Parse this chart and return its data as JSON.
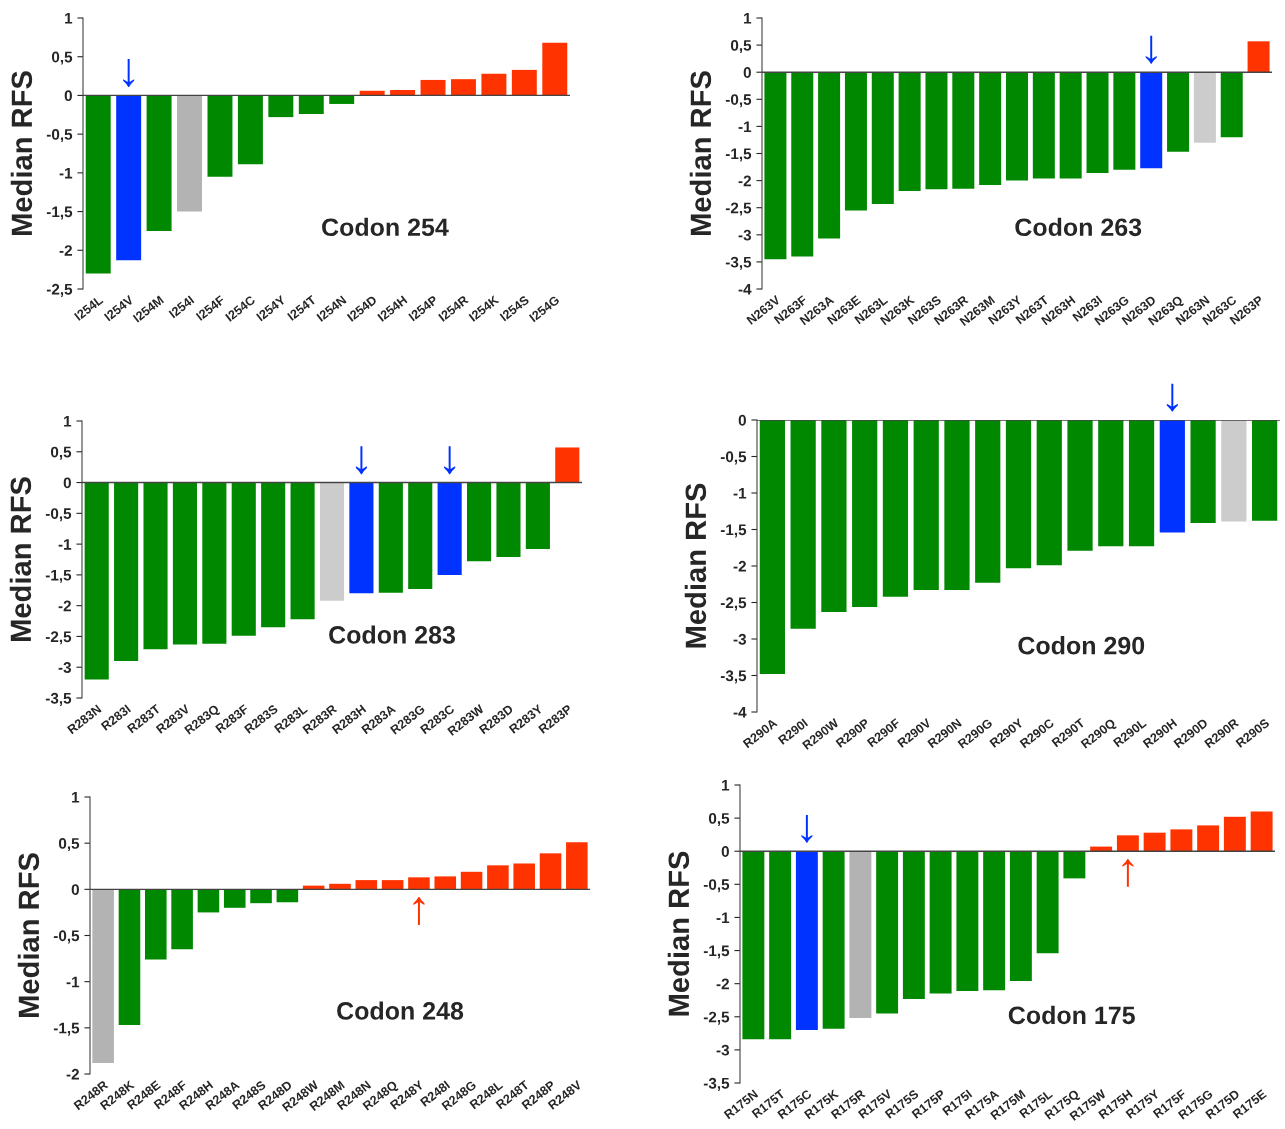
{
  "chart_data": [
    {
      "type": "bar",
      "title": "Codon 254",
      "ylabel": "Median RFS",
      "categories": [
        "I254L",
        "I254V",
        "I254M",
        "I254I",
        "I254F",
        "I254C",
        "I254Y",
        "I254T",
        "I254N",
        "I254D",
        "I254H",
        "I254P",
        "I254R",
        "I254K",
        "I254S",
        "I254G"
      ],
      "values": [
        -2.3,
        -2.13,
        -1.75,
        -1.5,
        -1.05,
        -0.89,
        -0.28,
        -0.24,
        -0.11,
        0.06,
        0.07,
        0.2,
        0.21,
        0.28,
        0.33,
        0.68
      ],
      "colors": [
        "#008800",
        "#0033ff",
        "#008800",
        "#b3b3b3",
        "#008800",
        "#008800",
        "#008800",
        "#008800",
        "#008800",
        "#ff3300",
        "#ff3300",
        "#ff3300",
        "#ff3300",
        "#ff3300",
        "#ff3300",
        "#ff3300"
      ],
      "ylim": [
        -2.5,
        1
      ],
      "yticks": [
        {
          "value": -2.5,
          "label": "-2,5"
        },
        -2,
        {
          "value": -1.5,
          "label": "-1,5"
        },
        -1,
        {
          "value": -0.5,
          "label": "-0,5"
        },
        0,
        {
          "value": 0.5,
          "label": "0,5"
        },
        1
      ],
      "annotations": [
        {
          "text": "↓",
          "x": "I254V",
          "y": 0
        }
      ]
    },
    {
      "type": "bar",
      "title": "Codon 263",
      "ylabel": "Median RFS",
      "categories": [
        "N263V",
        "N263F",
        "N263A",
        "N263E",
        "N263L",
        "N263K",
        "N263S",
        "N263R",
        "N263M",
        "N263Y",
        "N263T",
        "N263H",
        "N263I",
        "N263G",
        "N263D",
        "N263Q",
        "N263N",
        "N263C",
        "N263P"
      ],
      "values": [
        -3.45,
        -3.4,
        -3.07,
        -2.55,
        -2.43,
        -2.19,
        -2.16,
        -2.15,
        -2.08,
        -2.0,
        -1.96,
        -1.96,
        -1.86,
        -1.8,
        -1.77,
        -1.47,
        -1.3,
        -1.2,
        0.57
      ],
      "colors": [
        "#008800",
        "#008800",
        "#008800",
        "#008800",
        "#008800",
        "#008800",
        "#008800",
        "#008800",
        "#008800",
        "#008800",
        "#008800",
        "#008800",
        "#008800",
        "#008800",
        "#0033ff",
        "#008800",
        "#cccccc",
        "#008800",
        "#ff3300"
      ],
      "ylim": [
        -4,
        1
      ],
      "yticks": [
        -4,
        {
          "value": -3.5,
          "label": "-3,5"
        },
        -3,
        {
          "value": -2.5,
          "label": "-2,5"
        },
        -2,
        {
          "value": -1.5,
          "label": "-1,5"
        },
        -1,
        {
          "value": -0.5,
          "label": "-0,5"
        },
        0,
        {
          "value": 0.5,
          "label": "0,5"
        },
        1
      ],
      "annotations": [
        {
          "text": "↓",
          "x": "N263D",
          "y": 0
        }
      ]
    },
    {
      "type": "bar",
      "title": "Codon 283",
      "ylabel": "Median RFS",
      "categories": [
        "R283N",
        "R283I",
        "R283T",
        "R283V",
        "R283Q",
        "R283F",
        "R283S",
        "R283L",
        "R283R",
        "R283H",
        "R283A",
        "R283G",
        "R283C",
        "R283W",
        "R283D",
        "R283Y",
        "R283P"
      ],
      "values": [
        -3.2,
        -2.9,
        -2.71,
        -2.63,
        -2.62,
        -2.49,
        -2.35,
        -2.22,
        -1.92,
        -1.8,
        -1.79,
        -1.73,
        -1.5,
        -1.28,
        -1.21,
        -1.08,
        0.57
      ],
      "colors": [
        "#008800",
        "#008800",
        "#008800",
        "#008800",
        "#008800",
        "#008800",
        "#008800",
        "#008800",
        "#cccccc",
        "#0033ff",
        "#008800",
        "#008800",
        "#0033ff",
        "#008800",
        "#008800",
        "#008800",
        "#ff3300"
      ],
      "ylim": [
        -3.5,
        1
      ],
      "yticks": [
        {
          "value": -3.5,
          "label": "-3,5"
        },
        -3,
        {
          "value": -2.5,
          "label": "-2,5"
        },
        -2,
        {
          "value": -1.5,
          "label": "-1,5"
        },
        -1,
        {
          "value": -0.5,
          "label": "-0,5"
        },
        0,
        {
          "value": 0.5,
          "label": "0,5"
        },
        1
      ],
      "annotations": [
        {
          "text": "↓",
          "x": "R283H",
          "y": 0
        },
        {
          "text": "↓",
          "x": "R283C",
          "y": 0
        }
      ]
    },
    {
      "type": "bar",
      "title": "Codon 290",
      "ylabel": "Median RFS",
      "categories": [
        "R290A",
        "R290I",
        "R290W",
        "R290P",
        "R290F",
        "R290V",
        "R290N",
        "R290G",
        "R290Y",
        "R290C",
        "R290T",
        "R290Q",
        "R290L",
        "R290H",
        "R290D",
        "R290R",
        "R290S"
      ],
      "values": [
        -3.48,
        -2.86,
        -2.63,
        -2.56,
        -2.42,
        -2.33,
        -2.33,
        -2.23,
        -2.03,
        -1.99,
        -1.79,
        -1.73,
        -1.73,
        -1.54,
        -1.41,
        -1.39,
        -1.38
      ],
      "colors": [
        "#008800",
        "#008800",
        "#008800",
        "#008800",
        "#008800",
        "#008800",
        "#008800",
        "#008800",
        "#008800",
        "#008800",
        "#008800",
        "#008800",
        "#008800",
        "#0033ff",
        "#008800",
        "#cccccc",
        "#008800"
      ],
      "ylim": [
        -4,
        0
      ],
      "yticks": [
        -4,
        {
          "value": -3.5,
          "label": "-3,5"
        },
        -3,
        {
          "value": -2.5,
          "label": "-2,5"
        },
        -2,
        {
          "value": -1.5,
          "label": "-1,5"
        },
        -1,
        {
          "value": -0.5,
          "label": "-0,5"
        },
        0
      ],
      "annotations": [
        {
          "text": "↓",
          "x": "R290H",
          "y": 0
        }
      ]
    },
    {
      "type": "bar",
      "title": "Codon 248",
      "ylabel": "Median RFS",
      "categories": [
        "R248R",
        "R248K",
        "R248E",
        "R248F",
        "R248H",
        "R248A",
        "R248S",
        "R248D",
        "R248W",
        "R248M",
        "R248N",
        "R248Q",
        "R248Y",
        "R248I",
        "R248G",
        "R248L",
        "R248T",
        "R248P",
        "R248V"
      ],
      "values": [
        -1.88,
        -1.47,
        -0.76,
        -0.65,
        -0.25,
        -0.2,
        -0.15,
        -0.14,
        0.04,
        0.06,
        0.1,
        0.1,
        0.13,
        0.14,
        0.19,
        0.26,
        0.28,
        0.39,
        0.51
      ],
      "colors": [
        "#b3b3b3",
        "#008800",
        "#008800",
        "#008800",
        "#008800",
        "#008800",
        "#008800",
        "#008800",
        "#ff3300",
        "#ff3300",
        "#ff3300",
        "#ff3300",
        "#ff3300",
        "#ff3300",
        "#ff3300",
        "#ff3300",
        "#ff3300",
        "#ff3300",
        "#ff3300"
      ],
      "ylim": [
        -2,
        1
      ],
      "yticks": [
        -2,
        {
          "value": -1.5,
          "label": "-1,5"
        },
        -1,
        {
          "value": -0.5,
          "label": "-0,5"
        },
        0,
        {
          "value": 0.5,
          "label": "0,5"
        },
        1
      ],
      "annotations": [
        {
          "text": "↑",
          "x": "R248Y",
          "y": 0
        }
      ]
    },
    {
      "type": "bar",
      "title": "Codon 175",
      "ylabel": "Median RFS",
      "categories": [
        "R175N",
        "R175T",
        "R175C",
        "R175K",
        "R175R",
        "R175V",
        "R175S",
        "R175P",
        "R175I",
        "R175A",
        "R175M",
        "R175L",
        "R175Q",
        "R175W",
        "R175H",
        "R175Y",
        "R175F",
        "R175G",
        "R175D",
        "R175E"
      ],
      "values": [
        -2.84,
        -2.84,
        -2.7,
        -2.68,
        -2.52,
        -2.45,
        -2.23,
        -2.15,
        -2.11,
        -2.1,
        -1.96,
        -1.54,
        -0.41,
        0.07,
        0.24,
        0.28,
        0.33,
        0.39,
        0.52,
        0.6
      ],
      "colors": [
        "#008800",
        "#008800",
        "#0033ff",
        "#008800",
        "#b3b3b3",
        "#008800",
        "#008800",
        "#008800",
        "#008800",
        "#008800",
        "#008800",
        "#008800",
        "#008800",
        "#ff3300",
        "#ff3300",
        "#ff3300",
        "#ff3300",
        "#ff3300",
        "#ff3300",
        "#ff3300"
      ],
      "ylim": [
        -3.5,
        1
      ],
      "yticks": [
        {
          "value": -3.5,
          "label": "-3,5"
        },
        -3,
        {
          "value": -2.5,
          "label": "-2,5"
        },
        -2,
        {
          "value": -1.5,
          "label": "-1,5"
        },
        -1,
        {
          "value": -0.5,
          "label": "-0,5"
        },
        0,
        {
          "value": 0.5,
          "label": "0,5"
        },
        1
      ],
      "annotations": [
        {
          "text": "↓",
          "x": "R175C",
          "y": 0
        },
        {
          "text": "↑",
          "x": "R175H",
          "y": 0
        }
      ]
    }
  ]
}
